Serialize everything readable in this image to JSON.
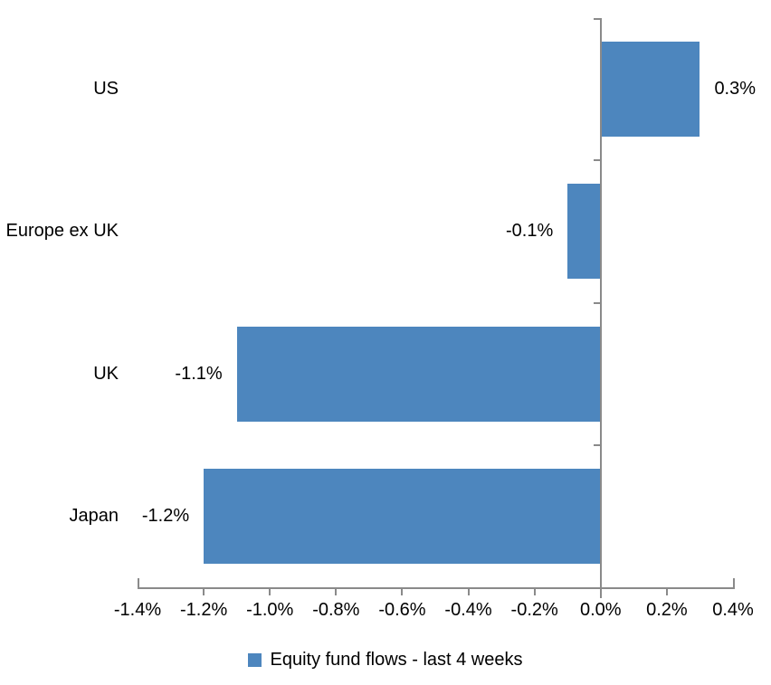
{
  "chart_data": {
    "type": "bar",
    "orientation": "horizontal",
    "title": "",
    "categories": [
      "US",
      "Europe ex UK",
      "UK",
      "Japan"
    ],
    "series": [
      {
        "name": "Equity fund flows - last 4 weeks",
        "values": [
          0.3,
          -0.1,
          -1.1,
          -1.2
        ],
        "value_labels": [
          "0.3%",
          "-0.1%",
          "-1.1%",
          "-1.2%"
        ]
      }
    ],
    "xlabel": "",
    "ylabel": "",
    "xlim": [
      -1.4,
      0.4
    ],
    "x_tick_values": [
      -1.4,
      -1.2,
      -1.0,
      -0.8,
      -0.6,
      -0.4,
      -0.2,
      0.0,
      0.2,
      0.4
    ],
    "x_tick_labels": [
      "-1.4%",
      "-1.2%",
      "-1.0%",
      "-0.8%",
      "-0.6%",
      "-0.4%",
      "-0.2%",
      "0.0%",
      "0.2%",
      "0.4%"
    ],
    "grid": false,
    "legend_position": "bottom",
    "colors": {
      "bar": "#4D86BE",
      "axis": "#8A8A8A",
      "text": "#000000"
    }
  }
}
